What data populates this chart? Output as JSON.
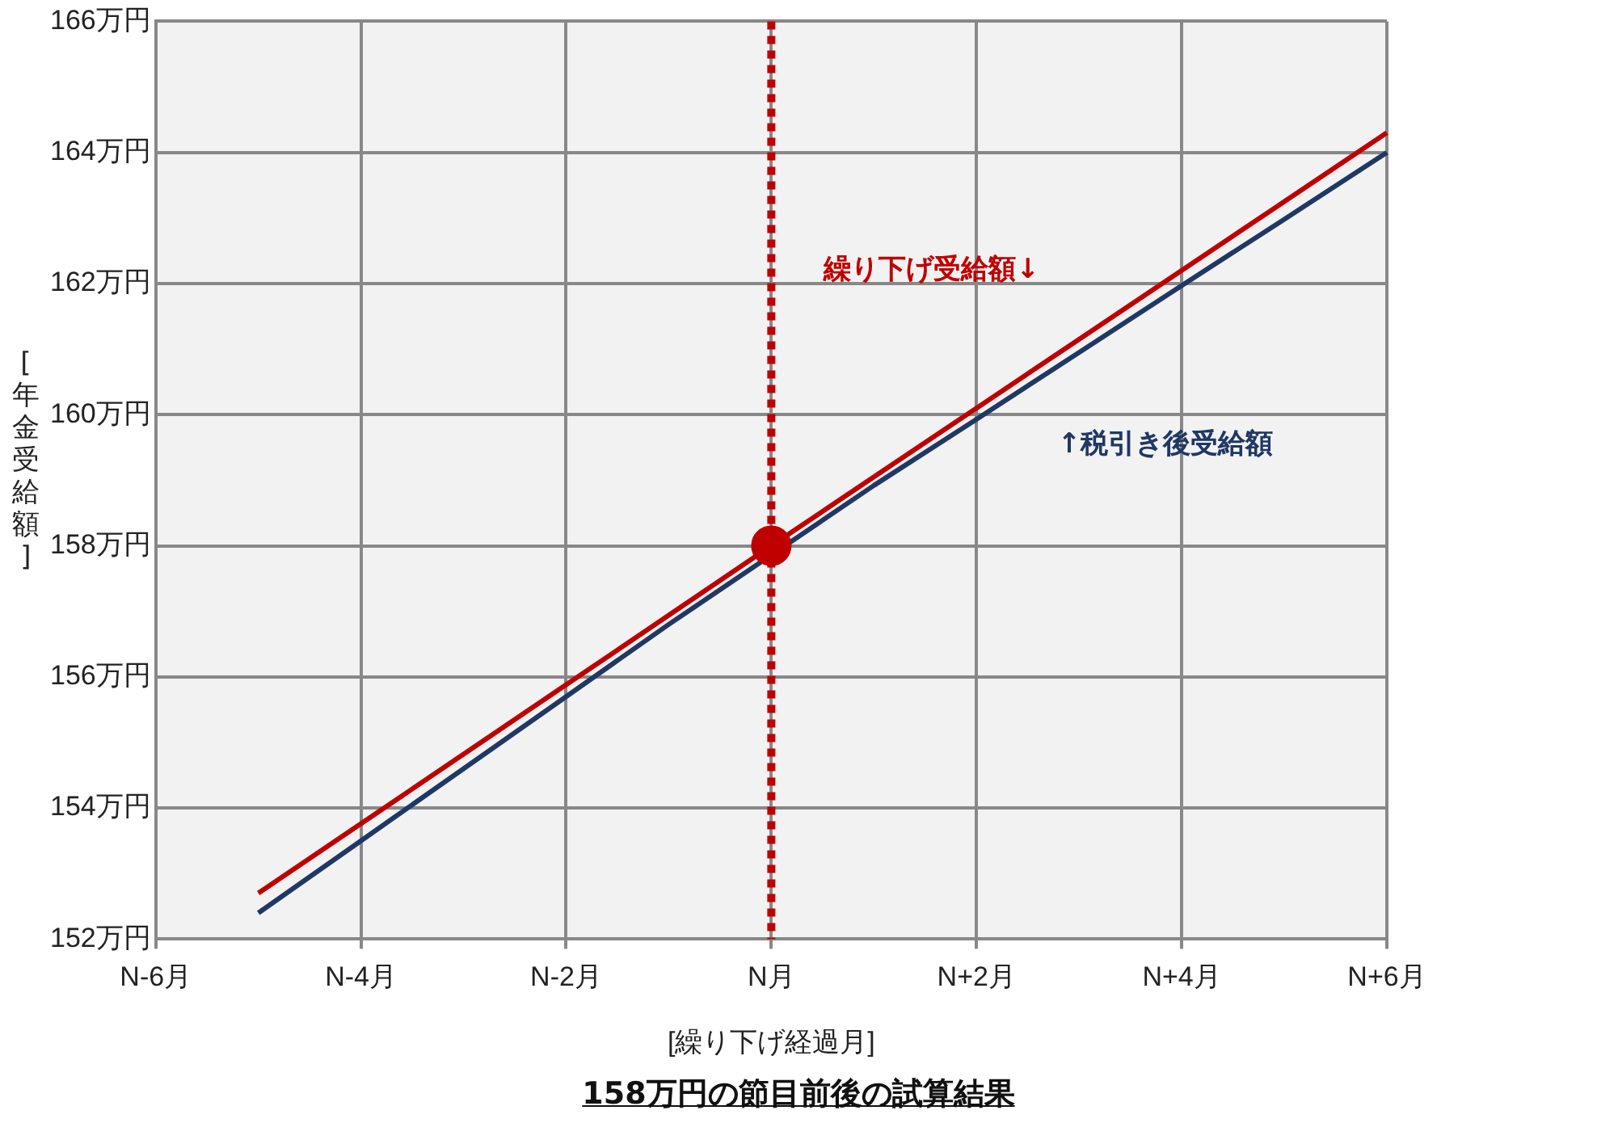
{
  "chart_data": {
    "type": "line",
    "title": "158万円の節目前後の試算結果",
    "xlabel": "[繰り下げ経過月]",
    "ylabel": "[年金受給額]",
    "categories": [
      "N-6月",
      null,
      "N-4月",
      null,
      "N-2月",
      null,
      "N月",
      null,
      "N+2月",
      null,
      "N+4月",
      null,
      "N+6月"
    ],
    "ylim": [
      152,
      166
    ],
    "yticks": [
      {
        "value": 152,
        "label": "152万円"
      },
      {
        "value": 154,
        "label": "154万円"
      },
      {
        "value": 156,
        "label": "156万円"
      },
      {
        "value": 158,
        "label": "158万円"
      },
      {
        "value": 160,
        "label": "160万円"
      },
      {
        "value": 162,
        "label": "162万円"
      },
      {
        "value": 164,
        "label": "164万円"
      },
      {
        "value": 166,
        "label": "166万円"
      }
    ],
    "grid": true,
    "legend": false,
    "marker": "none",
    "line_style": "solid",
    "series": [
      {
        "color": "#1f3864",
        "values": [
          null,
          152.4,
          153.5,
          154.6,
          155.7,
          156.8,
          null,
          158.92,
          159.93,
          160.95,
          161.97,
          162.98,
          164.0
        ]
      },
      {
        "color": "#c00000",
        "values": [
          null,
          152.7,
          153.76,
          154.82,
          155.88,
          156.94,
          158.0,
          159.05,
          160.1,
          161.15,
          162.2,
          163.25,
          164.3
        ]
      },
      {
        "type": "scatter",
        "marker": "circle",
        "color": "#c00000",
        "x": [
          "N月"
        ],
        "values": [
          158
        ]
      }
    ],
    "ref_lines": [
      {
        "axis": "x",
        "value": "N月",
        "color": "#c00000",
        "line_style": "dotted"
      }
    ],
    "annotations": [
      "繰り下げ受給額↓",
      "↑税引き後受給額"
    ]
  }
}
